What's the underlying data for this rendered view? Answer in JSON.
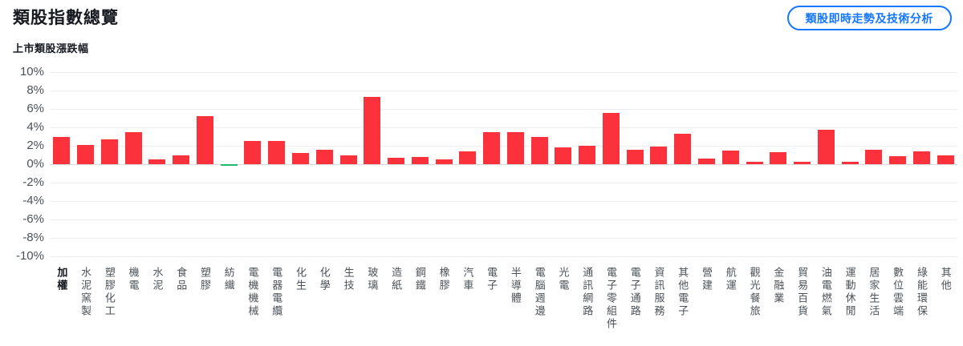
{
  "header": {
    "title": "類股指數總覽",
    "action_button_label": "類股即時走勢及技術分析"
  },
  "chart": {
    "subtitle": "上市類股漲跌幅"
  },
  "colors": {
    "up_red": "#fb323c",
    "down_green": "#1db96e",
    "accent_blue": "#1677ff",
    "grid_line": "#ededed",
    "axis_text": "#4b5157"
  },
  "chart_data": {
    "type": "bar",
    "title": "上市類股漲跌幅",
    "xlabel": "",
    "ylabel": "",
    "ylim": [
      -10,
      10
    ],
    "yticks": [
      10,
      8,
      6,
      4,
      2,
      0,
      -2,
      -4,
      -6,
      -8,
      -10
    ],
    "ytick_labels": [
      "10%",
      "8%",
      "6%",
      "4%",
      "2%",
      "0%",
      "-2%",
      "-4%",
      "-6%",
      "-8%",
      "-10%"
    ],
    "grid": true,
    "legend": false,
    "first_category_bold": true,
    "categories": [
      "加權",
      "水泥窯製",
      "塑膠化工",
      "機電",
      "水泥",
      "食品",
      "塑膠",
      "紡織",
      "電機機械",
      "電器電纜",
      "化生",
      "化學",
      "生技",
      "玻璃",
      "造紙",
      "鋼鐵",
      "橡膠",
      "汽車",
      "電子",
      "半導體",
      "電腦週邊",
      "光電",
      "通訊網路",
      "電子零組件",
      "電子通路",
      "資訊服務",
      "其他電子",
      "營建",
      "航運",
      "觀光餐旅",
      "金融業",
      "貿易百貨",
      "油電燃氣",
      "運動休閒",
      "居家生活",
      "數位雲端",
      "綠能環保",
      "其他"
    ],
    "values": [
      3.0,
      2.1,
      2.7,
      3.5,
      0.5,
      1.0,
      5.2,
      -0.1,
      2.5,
      2.5,
      1.2,
      1.6,
      1.0,
      7.3,
      0.7,
      0.8,
      0.5,
      1.4,
      3.5,
      3.5,
      3.0,
      1.8,
      2.0,
      5.6,
      1.6,
      1.9,
      3.3,
      0.6,
      1.5,
      0.3,
      1.3,
      0.3,
      3.7,
      0.25,
      1.6,
      0.9,
      1.4,
      1.0
    ]
  }
}
